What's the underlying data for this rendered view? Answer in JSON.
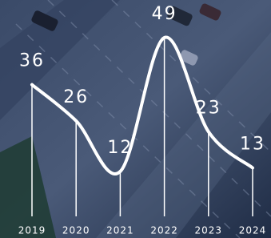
{
  "chart_data": {
    "type": "line",
    "categories": [
      "2019",
      "2020",
      "2021",
      "2022",
      "2023",
      "2024"
    ],
    "values": [
      36,
      26,
      12,
      49,
      23,
      13
    ],
    "color": "#ffffff"
  }
}
